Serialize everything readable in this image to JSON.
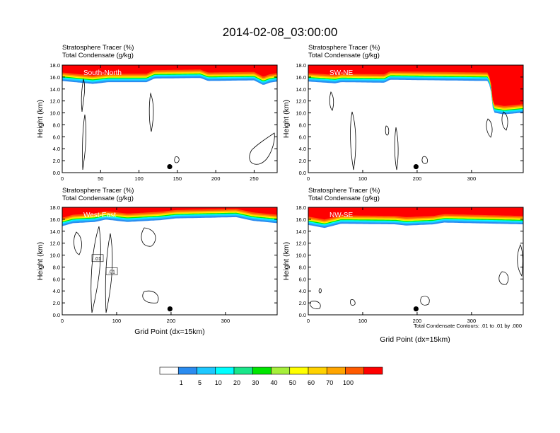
{
  "title": "2014-02-08_03:00:00",
  "contour_note": "Total Condensate Contours: .01 to .01 by .000",
  "colorbar": {
    "labels": [
      "1",
      "5",
      "10",
      "20",
      "30",
      "40",
      "50",
      "60",
      "70",
      "100"
    ],
    "colors": [
      "#ffffff",
      "#2b8cf0",
      "#1ec8ff",
      "#00ffff",
      "#19e68a",
      "#00e600",
      "#a6ef3a",
      "#ffff00",
      "#ffd200",
      "#ffa500",
      "#ff5a00",
      "#ff0000"
    ]
  },
  "chart_data": [
    {
      "type": "heatmap",
      "panel_label": "South-North",
      "line1": "Stratosphere Tracer   (%)",
      "line2": "Total Condensate   (g/kg)",
      "ylabel": "Height (km)",
      "xlabel": "",
      "xlim": [
        0,
        280
      ],
      "ylim": [
        0,
        18
      ],
      "xticks": [
        "0",
        "50",
        "100",
        "150",
        "200",
        "250"
      ],
      "xtick_values": [
        0,
        50,
        100,
        150,
        200,
        250
      ],
      "yticks": [
        "0.0",
        "2.0",
        "4.0",
        "6.0",
        "8.0",
        "10.0",
        "12.0",
        "14.0",
        "16.0",
        "18.0"
      ],
      "tropopause_km": [
        [
          0,
          15.8
        ],
        [
          40,
          15.3
        ],
        [
          60,
          15.6
        ],
        [
          110,
          15.6
        ],
        [
          120,
          16.2
        ],
        [
          180,
          16.3
        ],
        [
          190,
          15.8
        ],
        [
          250,
          15.9
        ],
        [
          262,
          15.1
        ],
        [
          270,
          15.5
        ],
        [
          280,
          15.7
        ]
      ],
      "marker": {
        "x": 140,
        "y": 1.0
      },
      "contour_labels": []
    },
    {
      "type": "heatmap",
      "panel_label": "SW-NE",
      "line1": "Stratosphere Tracer   (%)",
      "line2": "Total Condensate   (g/kg)",
      "ylabel": "Height (km)",
      "xlabel": "",
      "xlim": [
        0,
        395
      ],
      "ylim": [
        0,
        18
      ],
      "xticks": [
        "0",
        "100",
        "200",
        "300"
      ],
      "xtick_values": [
        0,
        100,
        200,
        300
      ],
      "yticks": [
        "0.0",
        "2.0",
        "4.0",
        "6.0",
        "8.0",
        "10.0",
        "12.0",
        "14.0",
        "16.0",
        "18.0"
      ],
      "tropopause_km": [
        [
          0,
          15.7
        ],
        [
          50,
          15.4
        ],
        [
          60,
          15.6
        ],
        [
          140,
          15.5
        ],
        [
          150,
          16.0
        ],
        [
          330,
          15.8
        ],
        [
          335,
          14.6
        ],
        [
          340,
          10.5
        ],
        [
          360,
          10.2
        ],
        [
          395,
          10.5
        ]
      ],
      "marker": {
        "x": 198,
        "y": 1.0
      },
      "contour_labels": []
    },
    {
      "type": "heatmap",
      "panel_label": "West-East",
      "line1": "Stratosphere Tracer   (%)",
      "line2": "Total Condensate   (g/kg)",
      "ylabel": "Height (km)",
      "xlabel": "Grid Point (dx=15km)",
      "xlim": [
        0,
        395
      ],
      "ylim": [
        0,
        18
      ],
      "xticks": [
        "0",
        "100",
        "200",
        "300"
      ],
      "xtick_values": [
        0,
        100,
        200,
        300
      ],
      "yticks": [
        "0.0",
        "2.0",
        "4.0",
        "6.0",
        "8.0",
        "10.0",
        "12.0",
        "14.0",
        "16.0",
        "18.0"
      ],
      "tropopause_km": [
        [
          0,
          15.3
        ],
        [
          20,
          15.8
        ],
        [
          60,
          16.0
        ],
        [
          80,
          16.4
        ],
        [
          120,
          16.0
        ],
        [
          180,
          16.3
        ],
        [
          210,
          16.6
        ],
        [
          320,
          16.8
        ],
        [
          350,
          16.2
        ],
        [
          395,
          15.8
        ]
      ],
      "marker": {
        "x": 198,
        "y": 1.0
      },
      "contour_labels": [
        {
          "text": ".01",
          "x": 65,
          "y": 9.5
        },
        {
          "text": ".01",
          "x": 91,
          "y": 7.3
        }
      ]
    },
    {
      "type": "heatmap",
      "panel_label": "NW-SE",
      "line1": "Stratosphere Tracer   (%)",
      "line2": "Total Condensate   (g/kg)",
      "ylabel": "Height (km)",
      "xlabel": "Grid Point (dx=15km)",
      "xlim": [
        0,
        395
      ],
      "ylim": [
        0,
        18
      ],
      "xticks": [
        "0",
        "100",
        "200",
        "300"
      ],
      "xtick_values": [
        0,
        100,
        200,
        300
      ],
      "yticks": [
        "0.0",
        "2.0",
        "4.0",
        "6.0",
        "8.0",
        "10.0",
        "12.0",
        "14.0",
        "16.0",
        "18.0"
      ],
      "tropopause_km": [
        [
          0,
          15.5
        ],
        [
          30,
          15.0
        ],
        [
          60,
          15.7
        ],
        [
          160,
          15.6
        ],
        [
          180,
          15.4
        ],
        [
          230,
          15.6
        ],
        [
          250,
          15.9
        ],
        [
          395,
          15.6
        ]
      ],
      "marker": {
        "x": 198,
        "y": 1.0
      },
      "contour_labels": []
    }
  ]
}
